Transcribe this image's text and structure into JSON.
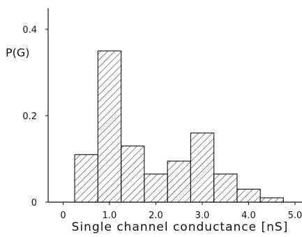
{
  "chart_data": {
    "type": "bar",
    "title": "",
    "xlabel": "Single channel conductance [nS]",
    "ylabel": "P(G)",
    "xlim": [
      -0.3,
      5.1
    ],
    "ylim": [
      0,
      0.45
    ],
    "x_ticks": [
      0,
      1.0,
      2.0,
      3.0,
      4.0,
      5.0
    ],
    "x_tick_labels": [
      "0",
      "1.0",
      "2.0",
      "3.0",
      "4.0",
      "5.0"
    ],
    "y_ticks": [
      0,
      0.2,
      0.4
    ],
    "y_tick_labels": [
      "0",
      "0.2",
      "0.4"
    ],
    "bin_width": 0.5,
    "bins": [
      {
        "x_start": 0.25,
        "x_end": 0.75,
        "value": 0.11
      },
      {
        "x_start": 0.75,
        "x_end": 1.25,
        "value": 0.35
      },
      {
        "x_start": 1.25,
        "x_end": 1.75,
        "value": 0.13
      },
      {
        "x_start": 1.75,
        "x_end": 2.25,
        "value": 0.065
      },
      {
        "x_start": 2.25,
        "x_end": 2.75,
        "value": 0.095
      },
      {
        "x_start": 2.75,
        "x_end": 3.25,
        "value": 0.16
      },
      {
        "x_start": 3.25,
        "x_end": 3.75,
        "value": 0.065
      },
      {
        "x_start": 3.75,
        "x_end": 4.25,
        "value": 0.03
      },
      {
        "x_start": 4.25,
        "x_end": 4.75,
        "value": 0.01
      }
    ],
    "bar_fill": "hatched",
    "grid": false,
    "legend": "none"
  }
}
